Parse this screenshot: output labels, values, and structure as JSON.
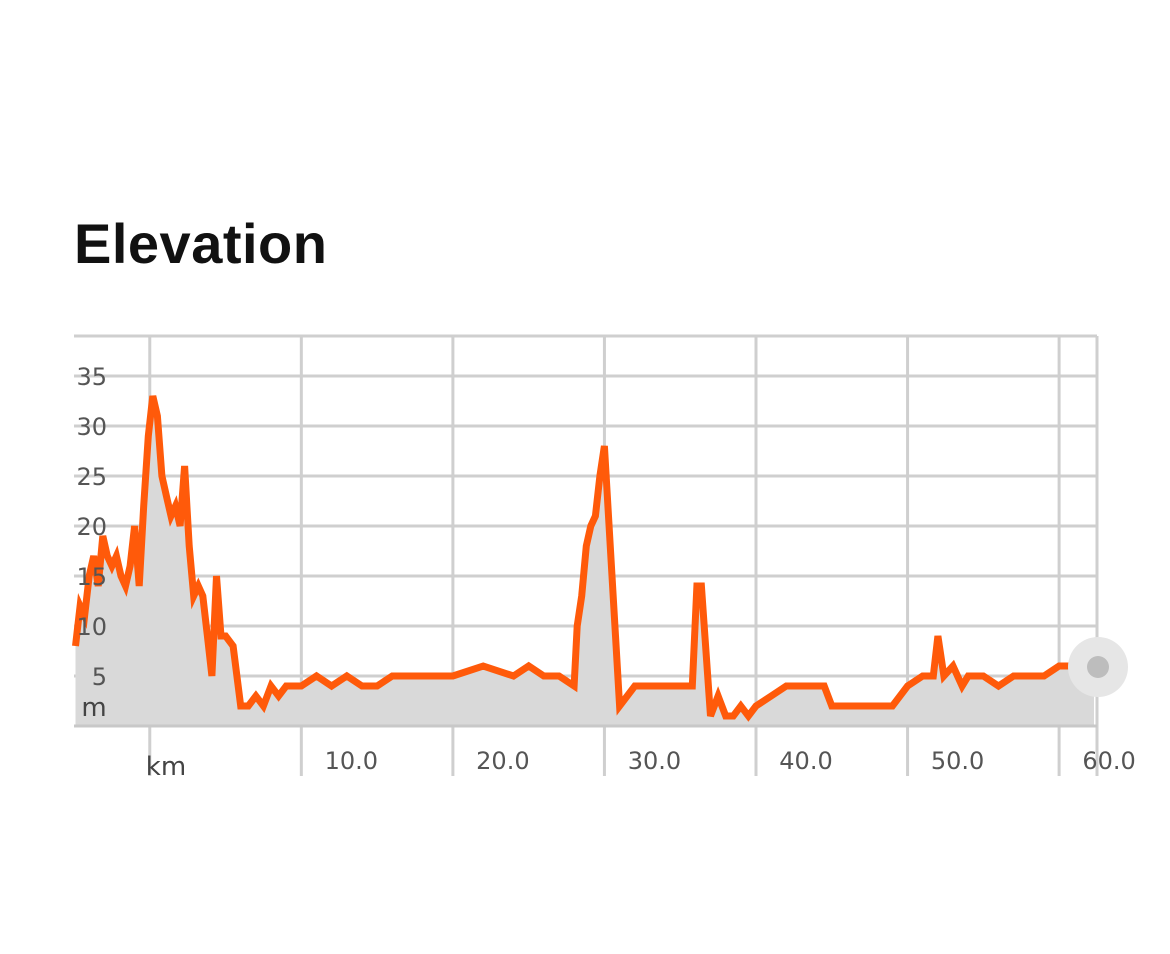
{
  "title": "Elevation",
  "chart_data": {
    "type": "area",
    "title": "Elevation",
    "xlabel": "km",
    "ylabel": "m",
    "xlim": [
      -5,
      62.5
    ],
    "ylim": [
      0,
      39
    ],
    "x_ticks": [
      10,
      20,
      30,
      40,
      50,
      60
    ],
    "x_tick_labels": [
      "10.0",
      "20.0",
      "30.0",
      "40.0",
      "50.0",
      "60.0"
    ],
    "y_ticks": [
      5,
      10,
      15,
      20,
      25,
      30,
      35
    ],
    "y_tick_labels": [
      "5",
      "10",
      "15",
      "20",
      "25",
      "30",
      "35"
    ],
    "grid": true,
    "line_color": "#ff5a0a",
    "fill_color": "#d9d9d9",
    "grid_color": "#cfcfcf",
    "handle_color": "#bdbdbd",
    "x": [
      -4.9,
      -4.6,
      -4.3,
      -4.0,
      -3.7,
      -3.4,
      -3.1,
      -2.8,
      -2.5,
      -2.2,
      -1.9,
      -1.6,
      -1.3,
      -1.0,
      -0.7,
      -0.4,
      -0.1,
      0.2,
      0.5,
      0.8,
      1.1,
      1.4,
      1.7,
      2.0,
      2.3,
      2.6,
      2.9,
      3.2,
      3.5,
      3.8,
      4.1,
      4.4,
      4.7,
      5.0,
      5.5,
      6.0,
      6.5,
      7.0,
      7.5,
      8.0,
      8.5,
      9.0,
      9.5,
      10.0,
      11.0,
      12.0,
      13.0,
      14.0,
      15.0,
      16.0,
      17.0,
      18.0,
      19.0,
      20.0,
      22.0,
      24.0,
      25.0,
      26.0,
      27.0,
      28.0,
      28.2,
      28.5,
      28.8,
      29.1,
      29.4,
      29.7,
      30.0,
      31.0,
      32.0,
      33.0,
      34.0,
      35.0,
      35.5,
      35.8,
      36.1,
      36.4,
      37.0,
      37.5,
      38.0,
      38.5,
      39.0,
      39.5,
      40.0,
      41.0,
      42.0,
      43.0,
      44.0,
      44.5,
      45.0,
      46.0,
      47.0,
      48.0,
      49.0,
      50.0,
      51.0,
      51.7,
      52.0,
      52.4,
      53.0,
      53.6,
      54.0,
      55.0,
      56.0,
      57.0,
      58.0,
      59.0,
      60.0,
      61.0,
      62.0,
      62.3
    ],
    "y": [
      8,
      12,
      11,
      15,
      17,
      14,
      19,
      17,
      16,
      17,
      15,
      14,
      16,
      20,
      14,
      22,
      29,
      33,
      31,
      25,
      23,
      21,
      22,
      20,
      26,
      18,
      13,
      14,
      13,
      9,
      5,
      15,
      9,
      9,
      8,
      2,
      2,
      3,
      2,
      4,
      3,
      4,
      4,
      4,
      5,
      4,
      5,
      4,
      4,
      5,
      5,
      5,
      5,
      5,
      6,
      5,
      6,
      5,
      5,
      4,
      10,
      13,
      18,
      20,
      21,
      25,
      28,
      2,
      4,
      4,
      4,
      4,
      4,
      4,
      14,
      14,
      1,
      3,
      1,
      1,
      2,
      1,
      2,
      3,
      4,
      4,
      4,
      4,
      2,
      2,
      2,
      2,
      2,
      4,
      5,
      5,
      9,
      5,
      6,
      4,
      5,
      5,
      4,
      5,
      5,
      5,
      6,
      6,
      6,
      5
    ]
  }
}
